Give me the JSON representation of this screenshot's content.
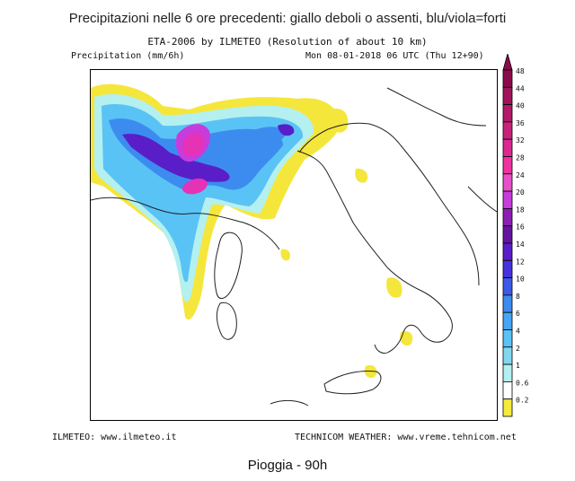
{
  "title": "Precipitazioni nelle 6 ore precedenti: giallo deboli o assenti, blu/viola=forti",
  "model_line": "ETA-2006 by ILMETEO (Resolution of about 10 km)",
  "units_label": "Precipitation (mm/6h)",
  "run_info": "Mon 08-01-2018 06 UTC (Thu 12+90)",
  "footer_left": "ILMETEO: www.ilmeteo.it",
  "footer_right": "TECHNICOM WEATHER: www.vreme.tehnicom.net",
  "caption": "Pioggia - 90h",
  "legend": {
    "levels": [
      {
        "value": "48",
        "color": "#8c0a4a"
      },
      {
        "value": "44",
        "color": "#a0145a"
      },
      {
        "value": "40",
        "color": "#b4196a"
      },
      {
        "value": "36",
        "color": "#c8237a"
      },
      {
        "value": "32",
        "color": "#dc2890"
      },
      {
        "value": "28",
        "color": "#f032a0"
      },
      {
        "value": "24",
        "color": "#e650c8"
      },
      {
        "value": "20",
        "color": "#c83cdc"
      },
      {
        "value": "18",
        "color": "#8c1eb4"
      },
      {
        "value": "16",
        "color": "#6414a0"
      },
      {
        "value": "14",
        "color": "#5a1ec8"
      },
      {
        "value": "12",
        "color": "#4632dc"
      },
      {
        "value": "10",
        "color": "#3c5ae6"
      },
      {
        "value": "8",
        "color": "#3c8cf0"
      },
      {
        "value": "6",
        "color": "#46a5f5"
      },
      {
        "value": "4",
        "color": "#5ac3f5"
      },
      {
        "value": "2",
        "color": "#82d7f0"
      },
      {
        "value": "1",
        "color": "#b4f0f0"
      },
      {
        "value": "0.6",
        "color": "#ffffff"
      },
      {
        "value": "0.2",
        "color": "#f5eb3c"
      }
    ]
  },
  "colors": {
    "land_line": "#222222",
    "yellow": "#f5e63c",
    "light_cyan": "#b4f0f0",
    "cyan": "#5ac3f5",
    "blue": "#3c8cf0",
    "violet": "#5a1ec8",
    "magenta": "#e632b4"
  }
}
